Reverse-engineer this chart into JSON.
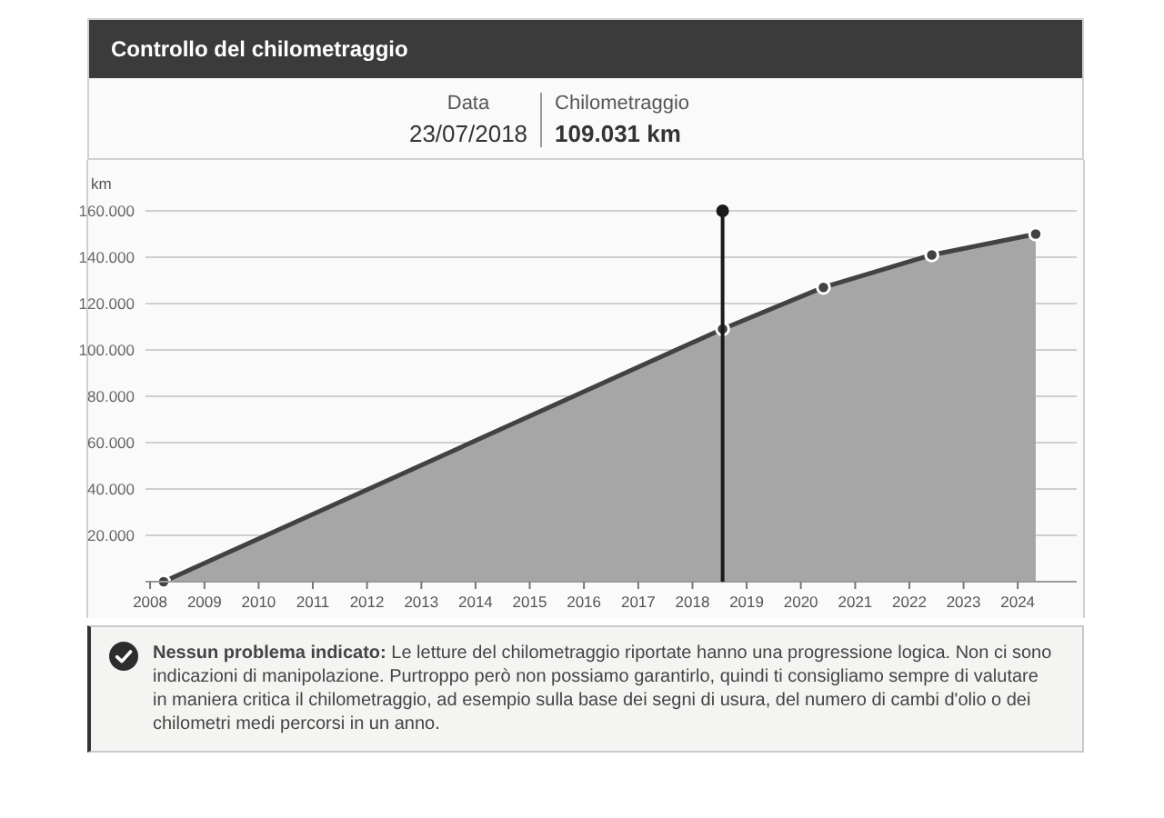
{
  "chart_data": {
    "type": "area",
    "title": "Controllo del chilometraggio",
    "ylabel": "km",
    "x": [
      "2008-04",
      "2018-07-23",
      "2020-06",
      "2022-06",
      "2024-05"
    ],
    "values": [
      0,
      109031,
      127000,
      141000,
      150000
    ],
    "color": "#a6a6a6",
    "xlim": [
      "2007-12",
      "2025-02"
    ],
    "xticks": [
      "2008",
      "2009",
      "2010",
      "2011",
      "2012",
      "2013",
      "2014",
      "2015",
      "2016",
      "2017",
      "2018",
      "2019",
      "2020",
      "2021",
      "2022",
      "2023",
      "2024"
    ],
    "ylim": [
      0,
      160000
    ],
    "yticks": [
      {
        "value": 20000,
        "label": "20.000"
      },
      {
        "value": 40000,
        "label": "40.000"
      },
      {
        "value": 60000,
        "label": "60.000"
      },
      {
        "value": 80000,
        "label": "80.000"
      },
      {
        "value": 100000,
        "label": "100.000"
      },
      {
        "value": 120000,
        "label": "120.000"
      },
      {
        "value": 140000,
        "label": "140.000"
      },
      {
        "value": 160000,
        "label": "160.000"
      }
    ],
    "grid": "y",
    "marker": "circle",
    "ref_lines": [
      {
        "axis": "x",
        "value": "2018-07-23",
        "color": "#1a1a1a"
      }
    ],
    "annotations": [
      "Data",
      "23/07/2018",
      "Chilometraggio",
      "109.031 km",
      "Nessun problema indicato:",
      "Le letture del chilometraggio riportate hanno una progressione logica. Non ci sono indicazioni di manipolazione. Purtroppo però non possiamo garantirlo, quindi ti consigliamo sempre di valutare in maniera critica il chilometraggio, ad esempio sulla base dei segni di usura, del numero di cambi d'olio o dei chilometri medi percorsi in un anno."
    ]
  }
}
